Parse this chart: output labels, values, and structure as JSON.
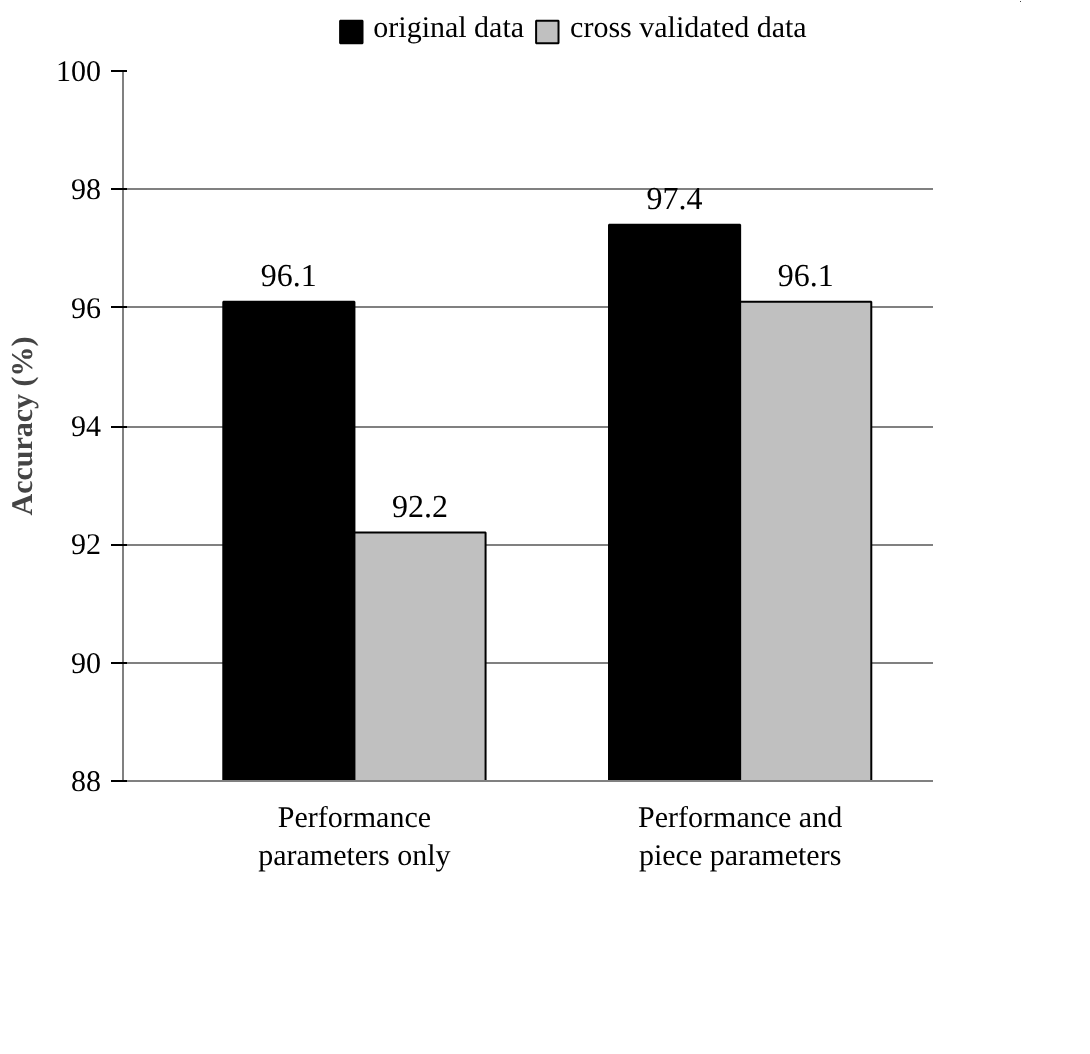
{
  "chart_data": {
    "type": "bar",
    "ylabel": "Accuracy (%)",
    "categories": [
      "Performance\nparameters only",
      "Performance and\npiece parameters"
    ],
    "series": [
      {
        "name": "original data",
        "color": "#000000",
        "values": [
          96.1,
          97.4
        ]
      },
      {
        "name": "cross validated data",
        "color": "#c0c0c0",
        "values": [
          92.2,
          96.1
        ]
      }
    ],
    "ylim": [
      88,
      100
    ],
    "yticks": [
      88,
      90,
      92,
      94,
      96,
      98,
      100
    ],
    "grid": "y",
    "legend": "top",
    "data_labels": true
  }
}
